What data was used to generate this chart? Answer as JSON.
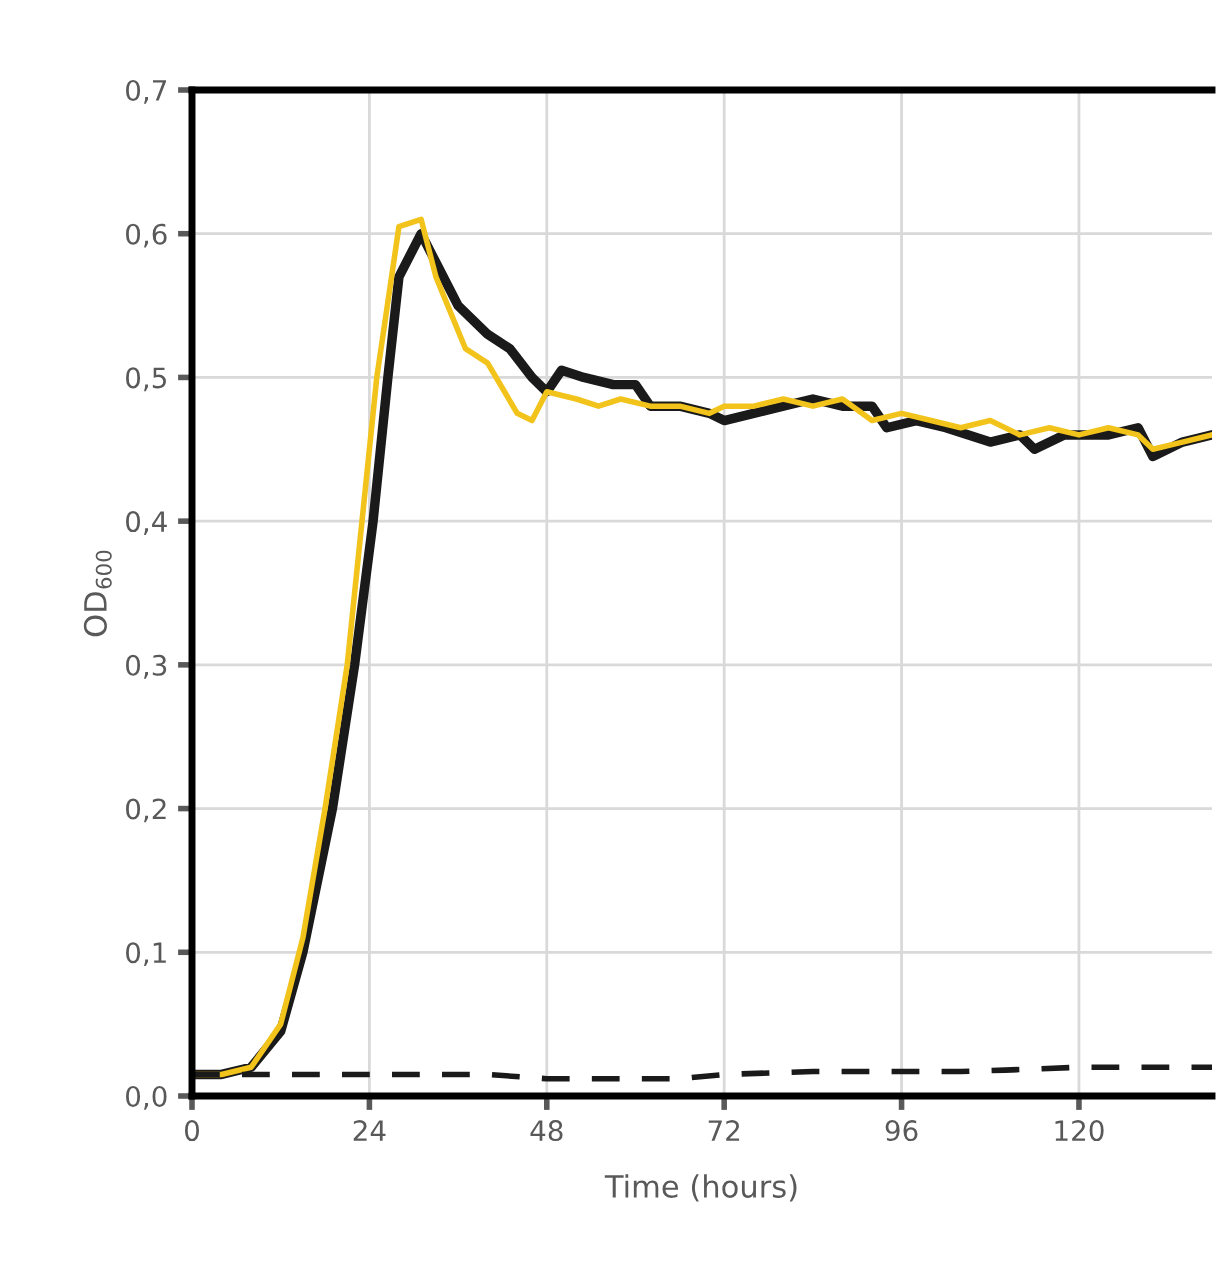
{
  "chart_data": {
    "type": "line",
    "xlabel": "Time (hours)",
    "ylabel": "OD$_{600}$",
    "xlim": [
      0,
      138
    ],
    "xticks": [
      0,
      24,
      48,
      72,
      96,
      120
    ],
    "ylim": [
      0,
      0.7
    ],
    "yticks": [
      {
        "value": 0,
        "label": "0,0"
      },
      {
        "value": 0.1,
        "label": "0,1"
      },
      {
        "value": 0.2,
        "label": "0,2"
      },
      {
        "value": 0.3,
        "label": "0,3"
      },
      {
        "value": 0.4,
        "label": "0,4"
      },
      {
        "value": 0.5,
        "label": "0,5"
      },
      {
        "value": 0.6,
        "label": "0,6"
      },
      {
        "value": 0.7,
        "label": "0,7"
      }
    ],
    "grid": true,
    "marker": "none",
    "series": [
      {
        "color": "#1a1a1a",
        "line_style": "solid",
        "x": [
          0,
          4,
          8,
          12,
          15,
          19,
          22,
          24.5,
          26.5,
          28,
          31,
          33,
          36,
          40,
          43,
          46,
          48,
          50,
          53,
          57,
          60,
          62,
          66,
          70,
          72,
          76,
          80,
          84,
          88,
          92,
          94,
          98,
          102,
          108,
          112,
          114,
          118,
          124,
          128,
          130,
          134,
          138
        ],
        "values": [
          0.015,
          0.015,
          0.02,
          0.045,
          0.1,
          0.2,
          0.3,
          0.4,
          0.5,
          0.57,
          0.6,
          0.58,
          0.55,
          0.53,
          0.52,
          0.5,
          0.49,
          0.505,
          0.5,
          0.495,
          0.495,
          0.48,
          0.48,
          0.475,
          0.47,
          0.475,
          0.48,
          0.485,
          0.48,
          0.48,
          0.465,
          0.47,
          0.465,
          0.455,
          0.46,
          0.45,
          0.46,
          0.46,
          0.465,
          0.445,
          0.455,
          0.46
        ]
      },
      {
        "color": "#f2c31b",
        "line_style": "solid",
        "x": [
          0,
          4,
          8,
          12,
          15,
          18,
          21,
          23,
          25,
          28,
          31,
          33,
          37,
          40,
          44,
          46,
          48,
          52,
          55,
          58,
          62,
          66,
          70,
          72,
          76,
          80,
          84,
          88,
          92,
          96,
          100,
          104,
          108,
          112,
          116,
          120,
          124,
          128,
          130,
          134,
          138
        ],
        "values": [
          0.015,
          0.015,
          0.02,
          0.05,
          0.11,
          0.2,
          0.3,
          0.4,
          0.5,
          0.605,
          0.61,
          0.57,
          0.52,
          0.51,
          0.475,
          0.47,
          0.49,
          0.485,
          0.48,
          0.485,
          0.48,
          0.48,
          0.475,
          0.48,
          0.48,
          0.485,
          0.48,
          0.485,
          0.47,
          0.475,
          0.47,
          0.465,
          0.47,
          0.46,
          0.465,
          0.46,
          0.465,
          0.46,
          0.45,
          0.455,
          0.46
        ]
      },
      {
        "color": "#1a1a1a",
        "line_style": "dashed",
        "x": [
          0,
          10,
          24,
          40,
          48,
          58,
          66,
          72,
          84,
          96,
          104,
          110,
          120,
          130,
          138
        ],
        "values": [
          0.015,
          0.015,
          0.015,
          0.015,
          0.012,
          0.012,
          0.012,
          0.015,
          0.017,
          0.017,
          0.017,
          0.018,
          0.02,
          0.02,
          0.02
        ]
      }
    ]
  }
}
